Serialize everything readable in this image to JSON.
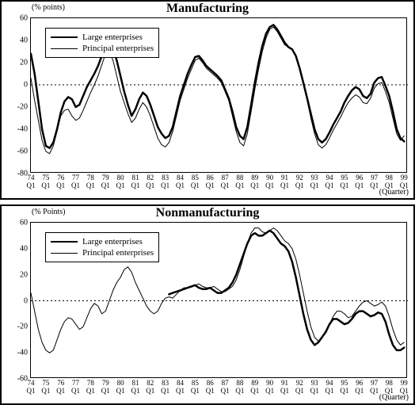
{
  "charts": [
    {
      "title": "Manufacturing",
      "ylabel": "(% points)",
      "xcaption": "(Quarter)",
      "type": "line",
      "background_color": "#ffffff",
      "axis_color": "#000000",
      "grid_color": "#000000",
      "zeroline": true,
      "title_fontsize": 16,
      "tick_fontsize": 10,
      "ylim": [
        -80,
        60
      ],
      "ytick_step": 20,
      "yticks": [
        60,
        40,
        20,
        0,
        -20,
        -40,
        -60,
        -80
      ],
      "xlim": [
        1974.0,
        1999.25
      ],
      "xticks": [
        {
          "value": 1974.0,
          "label": "74\nQ1"
        },
        {
          "value": 1975.0,
          "label": "75\nQ1"
        },
        {
          "value": 1976.0,
          "label": "76\nQ1"
        },
        {
          "value": 1977.0,
          "label": "77\nQ1"
        },
        {
          "value": 1978.0,
          "label": "78\nQ1"
        },
        {
          "value": 1979.0,
          "label": "79\nQ1"
        },
        {
          "value": 1980.0,
          "label": "80\nQ1"
        },
        {
          "value": 1981.0,
          "label": "81\nQ1"
        },
        {
          "value": 1982.0,
          "label": "82\nQ1"
        },
        {
          "value": 1983.0,
          "label": "83\nQ1"
        },
        {
          "value": 1984.0,
          "label": "84\nQ1"
        },
        {
          "value": 1985.0,
          "label": "85\nQ1"
        },
        {
          "value": 1986.0,
          "label": "86\nQ1"
        },
        {
          "value": 1987.0,
          "label": "87\nQ1"
        },
        {
          "value": 1988.0,
          "label": "88\nQ1"
        },
        {
          "value": 1989.0,
          "label": "89\nQ1"
        },
        {
          "value": 1990.0,
          "label": "90\nQ1"
        },
        {
          "value": 1991.0,
          "label": "91\nQ1"
        },
        {
          "value": 1992.0,
          "label": "92\nQ1"
        },
        {
          "value": 1993.0,
          "label": "93\nQ1"
        },
        {
          "value": 1994.0,
          "label": "94\nQ1"
        },
        {
          "value": 1995.0,
          "label": "95\nQ1"
        },
        {
          "value": 1996.0,
          "label": "96\nQ1"
        },
        {
          "value": 1997.0,
          "label": "97\nQ1"
        },
        {
          "value": 1998.0,
          "label": "98\nQ1"
        },
        {
          "value": 1999.0,
          "label": "99\nQ1"
        }
      ],
      "legend": {
        "items": [
          {
            "label": "Large enterprises",
            "line_width": 2.5,
            "color": "#000000"
          },
          {
            "label": "Principal enterprises",
            "line_width": 1,
            "color": "#000000"
          }
        ]
      },
      "series": [
        {
          "name": "large",
          "color": "#000000",
          "line_width": 2.5,
          "x_start": 1974.0,
          "x_step": 0.25,
          "y": [
            28,
            10,
            -15,
            -40,
            -55,
            -57,
            -52,
            -40,
            -25,
            -15,
            -11,
            -13,
            -20,
            -18,
            -10,
            -2,
            4,
            10,
            17,
            26,
            35,
            38,
            33,
            22,
            8,
            -6,
            -18,
            -28,
            -22,
            -13,
            -7,
            -10,
            -18,
            -28,
            -38,
            -44,
            -48,
            -46,
            -38,
            -24,
            -10,
            0,
            10,
            18,
            25,
            26,
            22,
            17,
            14,
            11,
            8,
            4,
            -4,
            -12,
            -24,
            -38,
            -46,
            -49,
            -38,
            -18,
            2,
            20,
            35,
            46,
            52,
            54,
            50,
            44,
            38,
            34,
            32,
            26,
            15,
            2,
            -12,
            -26,
            -40,
            -49,
            -52,
            -49,
            -43,
            -36,
            -30,
            -24,
            -16,
            -10,
            -5,
            -2,
            -4,
            -10,
            -12,
            -8,
            2,
            6,
            7,
            -1,
            -10,
            -24,
            -40,
            -48,
            -51
          ]
        },
        {
          "name": "principal",
          "color": "#000000",
          "line_width": 1,
          "x_start": 1974.0,
          "x_step": 0.25,
          "y": [
            6,
            -14,
            -32,
            -50,
            -60,
            -62,
            -55,
            -42,
            -28,
            -23,
            -22,
            -28,
            -32,
            -30,
            -23,
            -15,
            -7,
            0,
            8,
            18,
            28,
            30,
            22,
            8,
            -6,
            -16,
            -26,
            -34,
            -30,
            -22,
            -16,
            -20,
            -28,
            -38,
            -48,
            -54,
            -56,
            -52,
            -42,
            -28,
            -14,
            -4,
            6,
            14,
            22,
            24,
            20,
            15,
            12,
            9,
            6,
            2,
            -6,
            -14,
            -28,
            -42,
            -52,
            -55,
            -44,
            -24,
            -4,
            14,
            30,
            42,
            50,
            52,
            48,
            42,
            36,
            34,
            32,
            26,
            14,
            0,
            -14,
            -30,
            -44,
            -54,
            -57,
            -54,
            -48,
            -41,
            -35,
            -29,
            -22,
            -16,
            -12,
            -9,
            -11,
            -16,
            -17,
            -12,
            -3,
            1,
            2,
            -6,
            -16,
            -30,
            -44,
            -50,
            -46
          ]
        }
      ]
    },
    {
      "title": "Nonmanufacturing",
      "ylabel": "(% Points)",
      "xcaption": "(Quarter)",
      "type": "line",
      "background_color": "#ffffff",
      "axis_color": "#000000",
      "grid_color": "#000000",
      "zeroline": true,
      "title_fontsize": 16,
      "tick_fontsize": 10,
      "ylim": [
        -60,
        60
      ],
      "ytick_step": 20,
      "yticks": [
        60,
        40,
        20,
        0,
        -20,
        -40,
        -60
      ],
      "xlim": [
        1974.0,
        1999.25
      ],
      "xticks": [
        {
          "value": 1974.0,
          "label": "74\nQ1"
        },
        {
          "value": 1975.0,
          "label": "75\nQ1"
        },
        {
          "value": 1976.0,
          "label": "76\nQ1"
        },
        {
          "value": 1977.0,
          "label": "77\nQ1"
        },
        {
          "value": 1978.0,
          "label": "78\nQ1"
        },
        {
          "value": 1979.0,
          "label": "79\nQ1"
        },
        {
          "value": 1980.0,
          "label": "80\nQ1"
        },
        {
          "value": 1981.0,
          "label": "81\nQ1"
        },
        {
          "value": 1982.0,
          "label": "82\nQ1"
        },
        {
          "value": 1983.0,
          "label": "83\nQ1"
        },
        {
          "value": 1984.0,
          "label": "84\nQ1"
        },
        {
          "value": 1985.0,
          "label": "85\nQ1"
        },
        {
          "value": 1986.0,
          "label": "86\nQ1"
        },
        {
          "value": 1987.0,
          "label": "87\nQ1"
        },
        {
          "value": 1988.0,
          "label": "88\nQ1"
        },
        {
          "value": 1989.0,
          "label": "89\nQ1"
        },
        {
          "value": 1990.0,
          "label": "90\nQ1"
        },
        {
          "value": 1991.0,
          "label": "91\nQ1"
        },
        {
          "value": 1992.0,
          "label": "92\nQ1"
        },
        {
          "value": 1993.0,
          "label": "93\nQ1"
        },
        {
          "value": 1994.0,
          "label": "94\nQ1"
        },
        {
          "value": 1995.0,
          "label": "95\nQ1"
        },
        {
          "value": 1996.0,
          "label": "96\nQ1"
        },
        {
          "value": 1997.0,
          "label": "97\nQ1"
        },
        {
          "value": 1998.0,
          "label": "98\nQ1"
        },
        {
          "value": 1999.0,
          "label": "99\nQ1"
        }
      ],
      "legend": {
        "items": [
          {
            "label": "Large enterprises",
            "line_width": 2.5,
            "color": "#000000"
          },
          {
            "label": "Principal enterprises",
            "line_width": 1,
            "color": "#000000"
          }
        ]
      },
      "series": [
        {
          "name": "large",
          "color": "#000000",
          "line_width": 2.5,
          "x_start": 1983.25,
          "x_step": 0.25,
          "y": [
            5,
            6,
            7,
            8,
            9,
            10,
            11,
            12,
            10,
            9,
            9,
            10,
            8,
            6,
            6,
            8,
            10,
            14,
            20,
            28,
            36,
            44,
            50,
            52,
            50,
            50,
            52,
            54,
            52,
            48,
            44,
            42,
            38,
            30,
            18,
            4,
            -10,
            -22,
            -30,
            -34,
            -32,
            -28,
            -24,
            -18,
            -14,
            -14,
            -16,
            -18,
            -17,
            -14,
            -10,
            -8,
            -8,
            -10,
            -12,
            -11,
            -9,
            -10,
            -16,
            -26,
            -34,
            -38,
            -38,
            -36
          ]
        },
        {
          "name": "principal",
          "color": "#000000",
          "line_width": 1,
          "x_start": 1974.0,
          "x_step": 0.25,
          "y": [
            6,
            -8,
            -22,
            -32,
            -38,
            -40,
            -38,
            -30,
            -22,
            -16,
            -13,
            -14,
            -18,
            -22,
            -20,
            -13,
            -6,
            -2,
            -4,
            -10,
            -8,
            0,
            8,
            14,
            18,
            24,
            26,
            22,
            14,
            8,
            2,
            -4,
            -8,
            -10,
            -8,
            -2,
            2,
            3,
            2,
            5,
            8,
            10,
            10,
            11,
            12,
            13,
            11,
            10,
            10,
            11,
            9,
            7,
            7,
            9,
            11,
            16,
            24,
            34,
            44,
            52,
            56,
            56,
            53,
            52,
            54,
            56,
            54,
            50,
            46,
            44,
            40,
            32,
            20,
            6,
            -8,
            -20,
            -28,
            -31,
            -28,
            -23,
            -18,
            -12,
            -8,
            -8,
            -10,
            -13,
            -12,
            -8,
            -4,
            -1,
            0,
            -2,
            -4,
            -3,
            -1,
            -4,
            -12,
            -22,
            -30,
            -34,
            -32
          ]
        }
      ]
    }
  ]
}
